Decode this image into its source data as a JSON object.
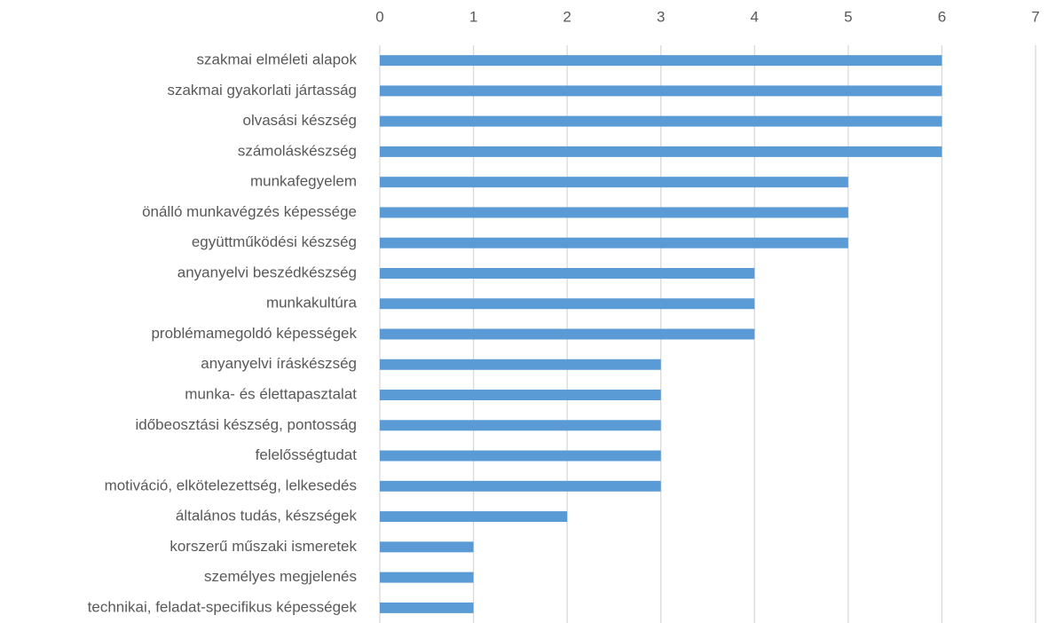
{
  "chart_data": {
    "type": "bar",
    "orientation": "horizontal",
    "categories": [
      "szakmai elméleti alapok",
      "szakmai gyakorlati jártasság",
      "olvasási készség",
      "számoláskészség",
      "munkafegyelem",
      "önálló munkavégzés képessége",
      "együttműködési készség",
      "anyanyelvi beszédkészség",
      "munkakultúra",
      "problémamegoldó képességek",
      "anyanyelvi íráskészség",
      "munka- és élettapasztalat",
      "időbeosztási készség, pontosság",
      "felelősségtudat",
      "motiváció, elkötelezettség, lelkesedés",
      "általános tudás, készségek",
      "korszerű műszaki ismeretek",
      "személyes megjelenés",
      "technikai, feladat-specifikus képességek"
    ],
    "values": [
      6,
      6,
      6,
      6,
      5,
      5,
      5,
      4,
      4,
      4,
      3,
      3,
      3,
      3,
      3,
      2,
      1,
      1,
      1
    ],
    "color": "#5b9bd5",
    "xlim": [
      0,
      7
    ],
    "xticks": [
      0,
      1,
      2,
      3,
      4,
      5,
      6,
      7
    ],
    "grid": true
  }
}
